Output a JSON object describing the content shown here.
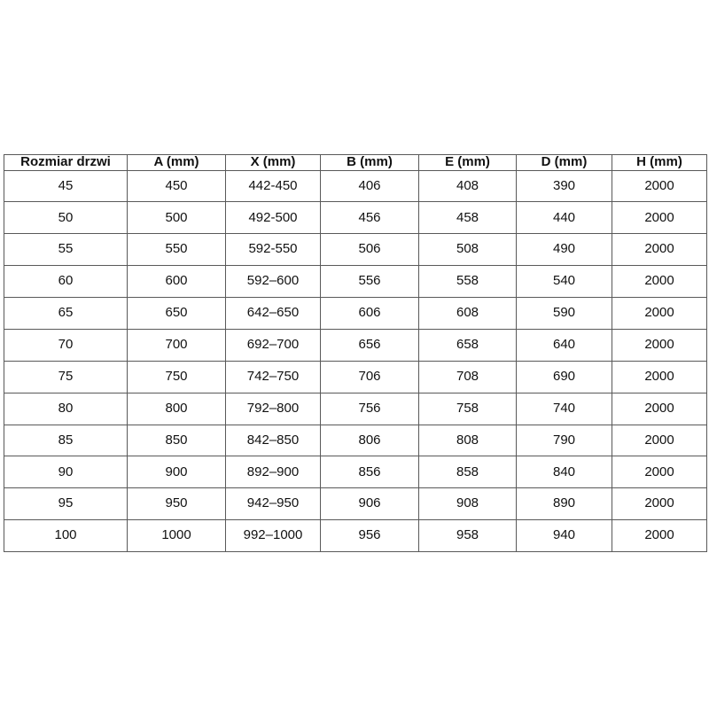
{
  "colors": {
    "border": "#595959",
    "text": "#111111",
    "background": "#ffffff"
  },
  "table": {
    "headers": [
      "Rozmiar drzwi",
      "A (mm)",
      "X (mm)",
      "B (mm)",
      "E (mm)",
      "D (mm)",
      "H (mm)"
    ],
    "rows": [
      [
        "45",
        "450",
        "442-450",
        "406",
        "408",
        "390",
        "2000"
      ],
      [
        "50",
        "500",
        "492-500",
        "456",
        "458",
        "440",
        "2000"
      ],
      [
        "55",
        "550",
        "592-550",
        "506",
        "508",
        "490",
        "2000"
      ],
      [
        "60",
        "600",
        "592–600",
        "556",
        "558",
        "540",
        "2000"
      ],
      [
        "65",
        "650",
        "642–650",
        "606",
        "608",
        "590",
        "2000"
      ],
      [
        "70",
        "700",
        "692–700",
        "656",
        "658",
        "640",
        "2000"
      ],
      [
        "75",
        "750",
        "742–750",
        "706",
        "708",
        "690",
        "2000"
      ],
      [
        "80",
        "800",
        "792–800",
        "756",
        "758",
        "740",
        "2000"
      ],
      [
        "85",
        "850",
        "842–850",
        "806",
        "808",
        "790",
        "2000"
      ],
      [
        "90",
        "900",
        "892–900",
        "856",
        "858",
        "840",
        "2000"
      ],
      [
        "95",
        "950",
        "942–950",
        "906",
        "908",
        "890",
        "2000"
      ],
      [
        "100",
        "1000",
        "992–1000",
        "956",
        "958",
        "940",
        "2000"
      ]
    ]
  }
}
